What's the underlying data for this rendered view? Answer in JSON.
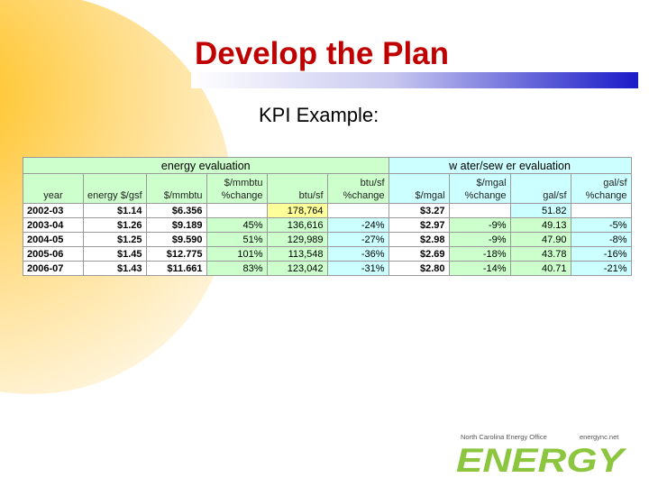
{
  "slide": {
    "title": "Develop the Plan",
    "subtitle": "KPI Example:"
  },
  "colors": {
    "title": "#c00000",
    "energy_header": "#ccffcc",
    "water_header": "#ccffff",
    "highlight": "#ffff99",
    "gradient_bar": "#2222cc",
    "decor_circle": "#ffcc33"
  },
  "table": {
    "group_headers": [
      "energy evaluation",
      "w ater/sew er evaluation"
    ],
    "columns": [
      [
        "year"
      ],
      [
        "energy $/gsf"
      ],
      [
        "$/mmbtu"
      ],
      [
        "$/mmbtu",
        "%change"
      ],
      [
        "btu/sf"
      ],
      [
        "btu/sf",
        "%change"
      ],
      [
        "$/mgal"
      ],
      [
        "$/mgal",
        "%change"
      ],
      [
        "gal/sf"
      ],
      [
        "gal/sf",
        "%change"
      ]
    ],
    "rows": [
      [
        "2002-03",
        "$1.14",
        "$6.356",
        "",
        "178,764",
        "",
        "$3.27",
        "",
        "51.82",
        ""
      ],
      [
        "2003-04",
        "$1.26",
        "$9.189",
        "45%",
        "136,616",
        "-24%",
        "$2.97",
        "-9%",
        "49.13",
        "-5%"
      ],
      [
        "2004-05",
        "$1.25",
        "$9.590",
        "51%",
        "129,989",
        "-27%",
        "$2.98",
        "-9%",
        "47.90",
        "-8%"
      ],
      [
        "2005-06",
        "$1.45",
        "$12.775",
        "101%",
        "113,548",
        "-36%",
        "$2.69",
        "-18%",
        "43.78",
        "-16%"
      ],
      [
        "2006-07",
        "$1.43",
        "$11.661",
        "83%",
        "123,042",
        "-31%",
        "$2.80",
        "-14%",
        "40.71",
        "-21%"
      ]
    ]
  },
  "logo": {
    "org": "North Carolina Energy Office",
    "site": "energync.net",
    "word": "ENERGY"
  }
}
